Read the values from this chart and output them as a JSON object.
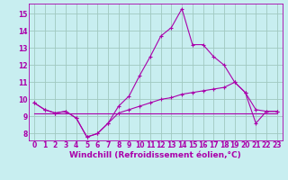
{
  "xlabel": "Windchill (Refroidissement éolien,°C)",
  "background_color": "#c8eef0",
  "grid_color": "#a0c8c0",
  "line_color": "#aa00aa",
  "x_ticks": [
    0,
    1,
    2,
    3,
    4,
    5,
    6,
    7,
    8,
    9,
    10,
    11,
    12,
    13,
    14,
    15,
    16,
    17,
    18,
    19,
    20,
    21,
    22,
    23
  ],
  "y_ticks": [
    8,
    9,
    10,
    11,
    12,
    13,
    14,
    15
  ],
  "ylim": [
    7.6,
    15.6
  ],
  "xlim": [
    -0.5,
    23.5
  ],
  "series1_x": [
    0,
    1,
    2,
    3,
    4,
    5,
    6,
    7,
    8,
    9,
    10,
    11,
    12,
    13,
    14,
    15,
    16,
    17,
    18,
    19,
    20,
    21,
    22,
    23
  ],
  "series1_y": [
    9.8,
    9.4,
    9.2,
    9.3,
    8.9,
    7.8,
    8.0,
    8.6,
    9.6,
    10.2,
    11.4,
    12.5,
    13.7,
    14.2,
    15.3,
    13.2,
    13.2,
    12.5,
    12.0,
    11.0,
    10.4,
    9.4,
    9.3,
    9.3
  ],
  "series2_x": [
    0,
    1,
    2,
    3,
    4,
    5,
    6,
    7,
    8,
    9,
    10,
    11,
    12,
    13,
    14,
    15,
    16,
    17,
    18,
    19,
    20,
    21,
    22,
    23
  ],
  "series2_y": [
    9.8,
    9.4,
    9.2,
    9.3,
    8.9,
    7.8,
    8.0,
    8.6,
    9.2,
    9.4,
    9.6,
    9.8,
    10.0,
    10.1,
    10.3,
    10.4,
    10.5,
    10.6,
    10.7,
    11.0,
    10.4,
    8.6,
    9.3,
    9.3
  ],
  "series3_x": [
    0,
    1,
    2,
    3,
    23
  ],
  "series3_y": [
    9.2,
    9.2,
    9.2,
    9.2,
    9.2
  ],
  "tick_fontsize": 5.5,
  "xlabel_fontsize": 6.5
}
